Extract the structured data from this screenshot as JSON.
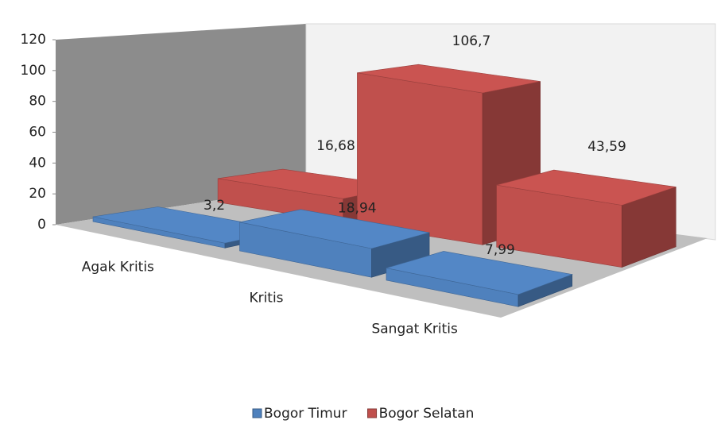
{
  "chart_data": {
    "type": "bar3d",
    "categories": [
      "Agak Kritis",
      "Kritis",
      "Sangat Kritis"
    ],
    "series": [
      {
        "name": "Bogor Timur",
        "color": "#4f81bd",
        "values": [
          3.2,
          18.94,
          7.99
        ],
        "value_labels": [
          "3,2",
          "18,94",
          "7,99"
        ]
      },
      {
        "name": "Bogor Selatan",
        "color": "#c0504d",
        "values": [
          16.68,
          106.7,
          43.59
        ],
        "value_labels": [
          "16,68",
          "106,7",
          "43,59"
        ]
      }
    ],
    "ylim": [
      0,
      120
    ],
    "yticks": [
      0,
      20,
      40,
      60,
      80,
      100,
      120
    ],
    "legend": "bottom"
  }
}
